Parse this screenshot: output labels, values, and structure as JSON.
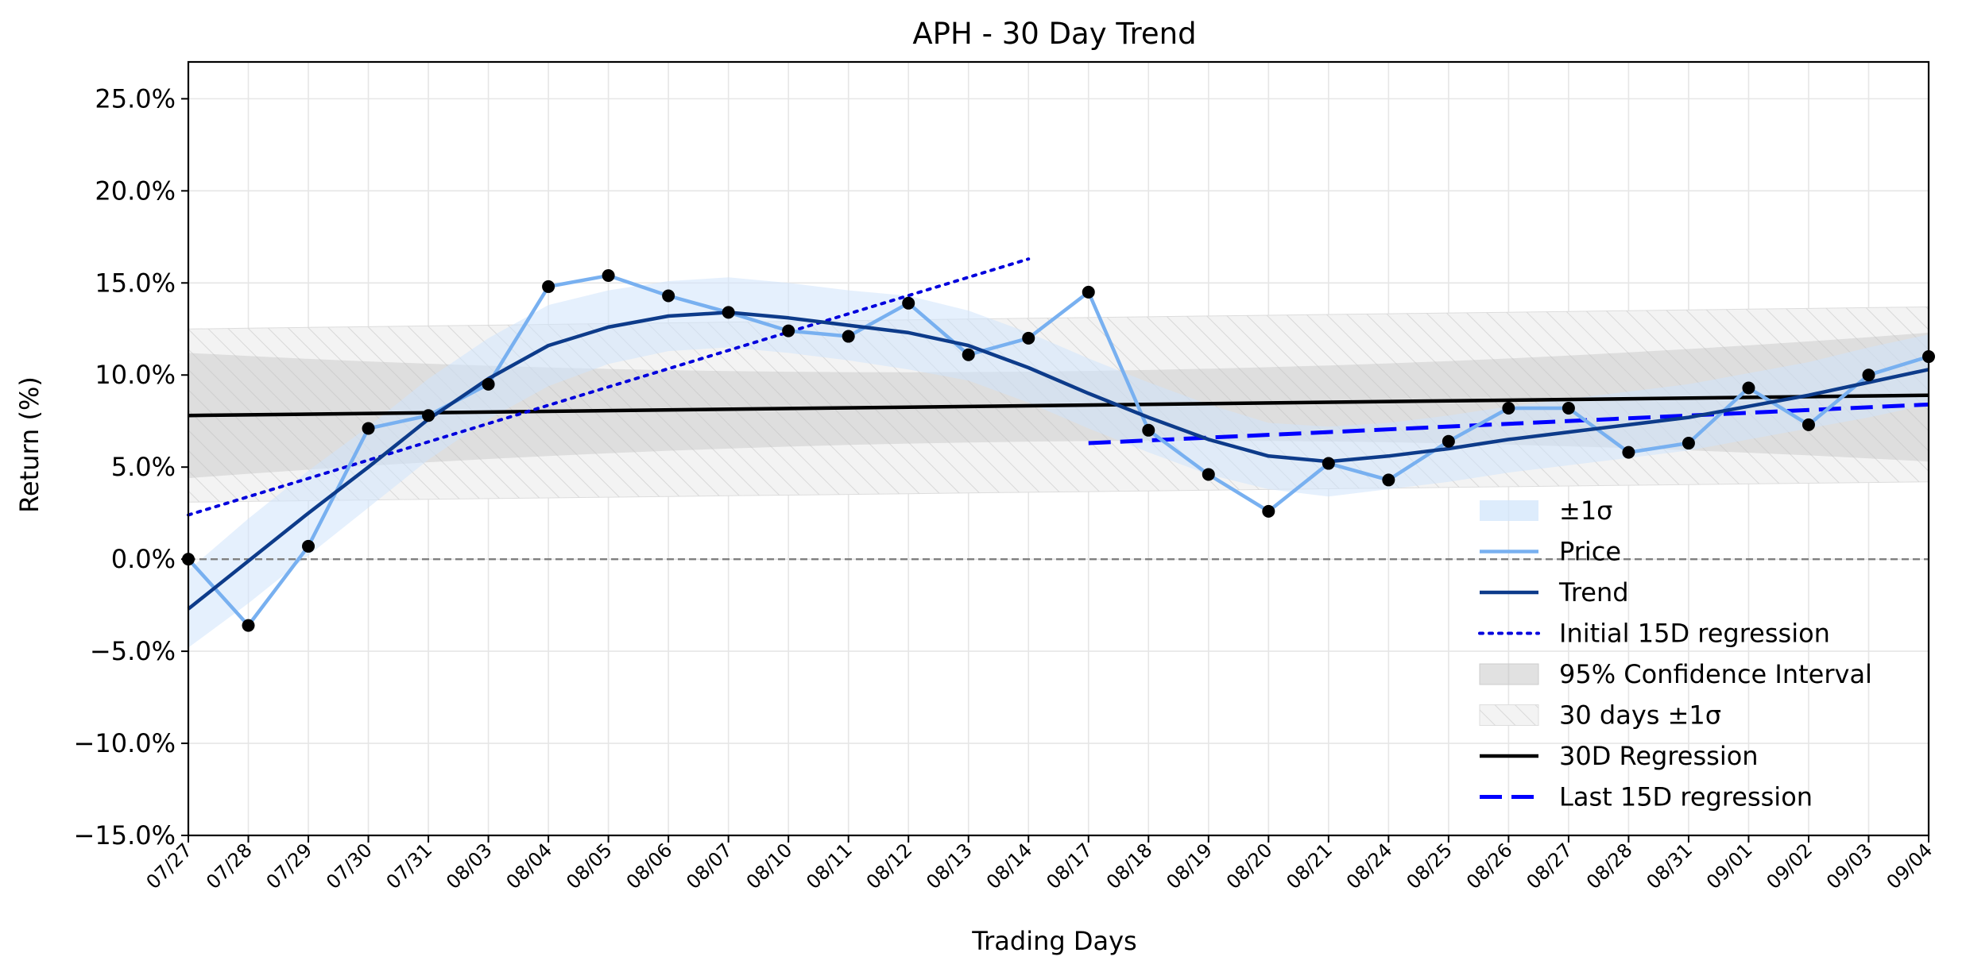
{
  "chart_data": {
    "type": "line",
    "title": "APH - 30 Day Trend",
    "xlabel": "Trading Days",
    "ylabel": "Return (%)",
    "categories": [
      "07/27",
      "07/28",
      "07/29",
      "07/30",
      "07/31",
      "08/03",
      "08/04",
      "08/05",
      "08/06",
      "08/07",
      "08/10",
      "08/11",
      "08/12",
      "08/13",
      "08/14",
      "08/17",
      "08/18",
      "08/19",
      "08/20",
      "08/21",
      "08/24",
      "08/25",
      "08/26",
      "08/27",
      "08/28",
      "08/31",
      "09/01",
      "09/02",
      "09/03",
      "09/04"
    ],
    "ylim": [
      -15,
      27
    ],
    "yticks": [
      -15,
      -10,
      -5,
      0,
      5,
      10,
      15,
      20,
      25
    ],
    "ytick_labels": [
      "−15.0%",
      "−10.0%",
      "−5.0%",
      "0.0%",
      "5.0%",
      "10.0%",
      "15.0%",
      "20.0%",
      "25.0%"
    ],
    "grid": true,
    "legend_position": "lower-right",
    "zero_line": 0,
    "series": [
      {
        "name": "Price",
        "kind": "line-markers",
        "color": "#78b0f0",
        "values": [
          0.0,
          -3.6,
          0.7,
          7.1,
          7.8,
          9.5,
          14.8,
          15.4,
          14.3,
          13.4,
          12.4,
          12.1,
          13.9,
          11.1,
          12.0,
          14.5,
          7.0,
          4.6,
          2.6,
          5.2,
          4.3,
          6.4,
          8.2,
          8.2,
          5.8,
          6.3,
          9.3,
          7.3,
          10.0,
          11.0
        ]
      },
      {
        "name": "Trend",
        "kind": "line",
        "color": "#0d3b8a",
        "values": [
          -2.7,
          -0.1,
          2.5,
          5.0,
          7.6,
          9.8,
          11.6,
          12.6,
          13.2,
          13.4,
          13.1,
          12.7,
          12.3,
          11.6,
          10.4,
          9.0,
          7.7,
          6.5,
          5.6,
          5.3,
          5.6,
          6.0,
          6.5,
          6.9,
          7.3,
          7.7,
          8.3,
          8.9,
          9.6,
          10.3
        ]
      },
      {
        "name": "±1σ",
        "kind": "band",
        "color": "#cfe4fb",
        "lower": [
          -4.8,
          -2.4,
          0.2,
          2.8,
          5.4,
          7.6,
          9.4,
          10.6,
          11.3,
          11.5,
          11.2,
          10.8,
          10.3,
          9.7,
          8.5,
          7.1,
          5.8,
          4.6,
          3.8,
          3.4,
          3.8,
          4.2,
          4.7,
          5.1,
          5.5,
          5.9,
          6.5,
          7.1,
          7.7,
          8.4
        ],
        "upper": [
          -0.6,
          2.2,
          4.8,
          7.2,
          9.8,
          12.0,
          13.8,
          14.6,
          15.1,
          15.3,
          15.0,
          14.6,
          14.3,
          13.5,
          12.3,
          10.9,
          9.6,
          8.4,
          7.4,
          7.2,
          7.4,
          7.8,
          8.3,
          8.7,
          9.1,
          9.5,
          10.1,
          10.7,
          11.5,
          12.2
        ]
      },
      {
        "name": "Initial 15D regression",
        "kind": "dotted",
        "color": "#0000dd",
        "x_range": [
          0,
          14
        ],
        "y_range": [
          2.4,
          16.3
        ]
      },
      {
        "name": "95% Confidence Interval",
        "kind": "band",
        "color": "#d3d3d3",
        "x_range": [
          0,
          29
        ],
        "lower_start": 4.4,
        "lower_mid": 6.4,
        "lower_end": 5.3,
        "upper_start": 11.2,
        "upper_mid": 10.2,
        "upper_end": 12.3
      },
      {
        "name": "30 days ±1σ",
        "kind": "hatched-band",
        "color": "#eeeeee",
        "x_range": [
          0,
          29
        ],
        "lower_start": 3.1,
        "lower_end": 4.2,
        "upper_start": 12.5,
        "upper_end": 13.7
      },
      {
        "name": "30D Regression",
        "kind": "line",
        "color": "#000000",
        "x_range": [
          0,
          29
        ],
        "y_range": [
          7.8,
          8.9
        ]
      },
      {
        "name": "Last 15D regression",
        "kind": "dashed",
        "color": "#0000ff",
        "x_range": [
          15,
          29
        ],
        "y_range": [
          6.3,
          8.4
        ]
      }
    ],
    "legend": [
      "±1σ",
      "Price",
      "Trend",
      "Initial 15D regression",
      "95% Confidence Interval",
      "30 days ±1σ",
      "30D Regression",
      "Last 15D regression"
    ]
  }
}
